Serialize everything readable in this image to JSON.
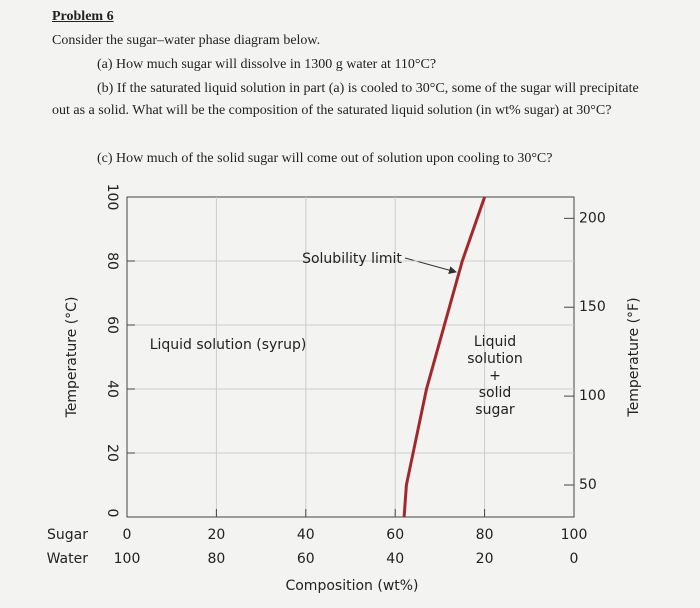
{
  "problem": {
    "title": "Problem 6",
    "intro": "Consider the sugar–water phase diagram below.",
    "parts": [
      "(a) How much sugar will dissolve in 1300 g water at 110°C?",
      "(b) If the saturated liquid solution in part (a) is cooled to 30°C, some of the sugar will precipitate out as a solid. What will be the composition of the saturated liquid solution (in wt% sugar) at 30°C?",
      "(c) How much of the solid sugar will come out of solution upon cooling to 30°C?"
    ]
  },
  "chart_data": {
    "type": "line",
    "x_label": "Composition (wt%)",
    "y_label": "Temperature (°C)",
    "y2_label": "Temperature (°F)",
    "x_row_labels": [
      "Sugar",
      "Water"
    ],
    "x": [
      62,
      62.5,
      64,
      67,
      71,
      75,
      80
    ],
    "values": [
      0,
      10,
      20,
      40,
      60,
      80,
      100
    ],
    "color": "#a3282c",
    "xlim": [
      0,
      100
    ],
    "xticks": [
      0,
      20,
      40,
      60,
      80,
      100
    ],
    "water_ticks": [
      100,
      80,
      60,
      40,
      20,
      0
    ],
    "ylim": [
      0,
      100
    ],
    "yticks": [
      0,
      20,
      40,
      60,
      80,
      100
    ],
    "y2lim": [
      32,
      212
    ],
    "y2ticks": [
      50,
      100,
      150,
      200
    ],
    "grid": true,
    "annotations": [
      "Solubility limit",
      "Liquid solution (syrup)",
      "Liquid",
      "solution",
      "+",
      "solid",
      "sugar"
    ]
  }
}
